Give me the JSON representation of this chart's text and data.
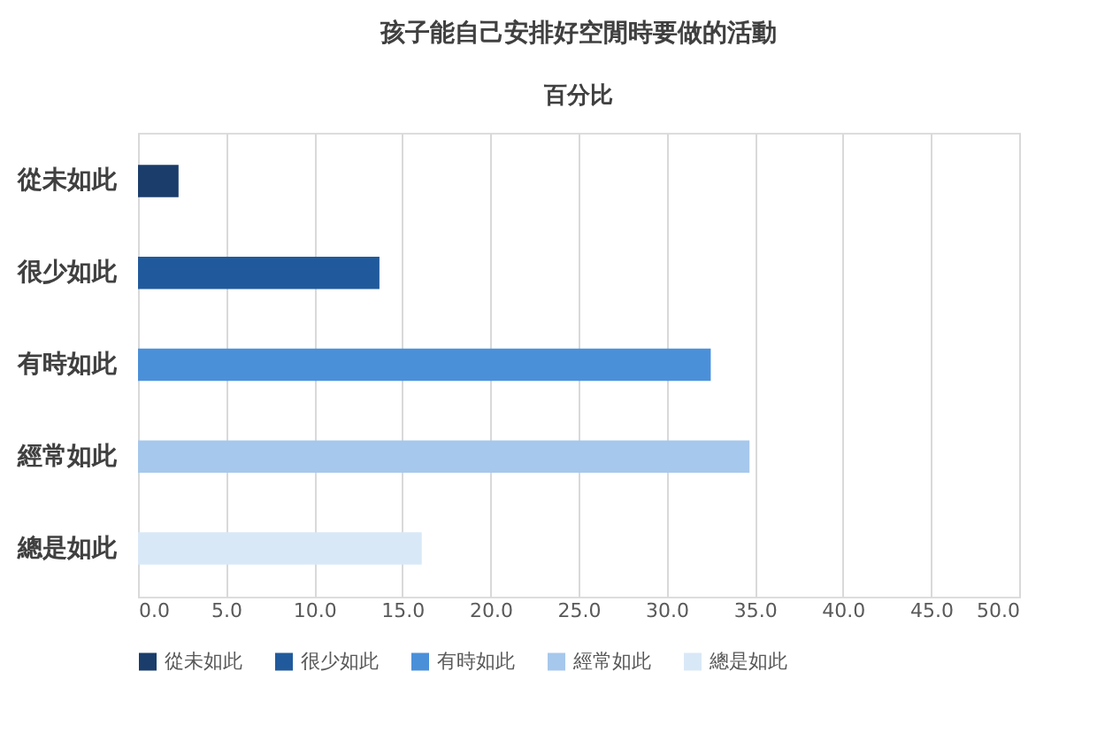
{
  "chart_data": {
    "type": "bar",
    "orientation": "horizontal",
    "title": "孩子能自己安排好空閒時要做的活動",
    "xlabel": "百分比",
    "categories": [
      "從未如此",
      "很少如此",
      "有時如此",
      "經常如此",
      "總是如此"
    ],
    "series": [
      {
        "name": "從未如此",
        "color": "#1a3d6b",
        "values": [
          2.3,
          null,
          null,
          null,
          null
        ]
      },
      {
        "name": "很少如此",
        "color": "#215a9c",
        "values": [
          null,
          13.7,
          null,
          null,
          null
        ]
      },
      {
        "name": "有時如此",
        "color": "#4a90d9",
        "values": [
          null,
          null,
          32.5,
          null,
          null
        ]
      },
      {
        "name": "經常如此",
        "color": "#a6c8ec",
        "values": [
          null,
          null,
          null,
          34.7,
          null
        ]
      },
      {
        "name": "總是如此",
        "color": "#d9e8f7",
        "values": [
          null,
          null,
          null,
          null,
          16.1
        ]
      }
    ],
    "xlim": [
      0,
      50
    ],
    "xticks": [
      {
        "value": 0,
        "label": "0.0"
      },
      {
        "value": 5,
        "label": "5.0"
      },
      {
        "value": 10,
        "label": "10.0"
      },
      {
        "value": 15,
        "label": "15.0"
      },
      {
        "value": 20,
        "label": "20.0"
      },
      {
        "value": 25,
        "label": "25.0"
      },
      {
        "value": 30,
        "label": "30.0"
      },
      {
        "value": 35,
        "label": "35.0"
      },
      {
        "value": 40,
        "label": "40.0"
      },
      {
        "value": 45,
        "label": "45.0"
      },
      {
        "value": 50,
        "label": "50.0"
      }
    ],
    "grid": "x",
    "legend": "bottom"
  }
}
